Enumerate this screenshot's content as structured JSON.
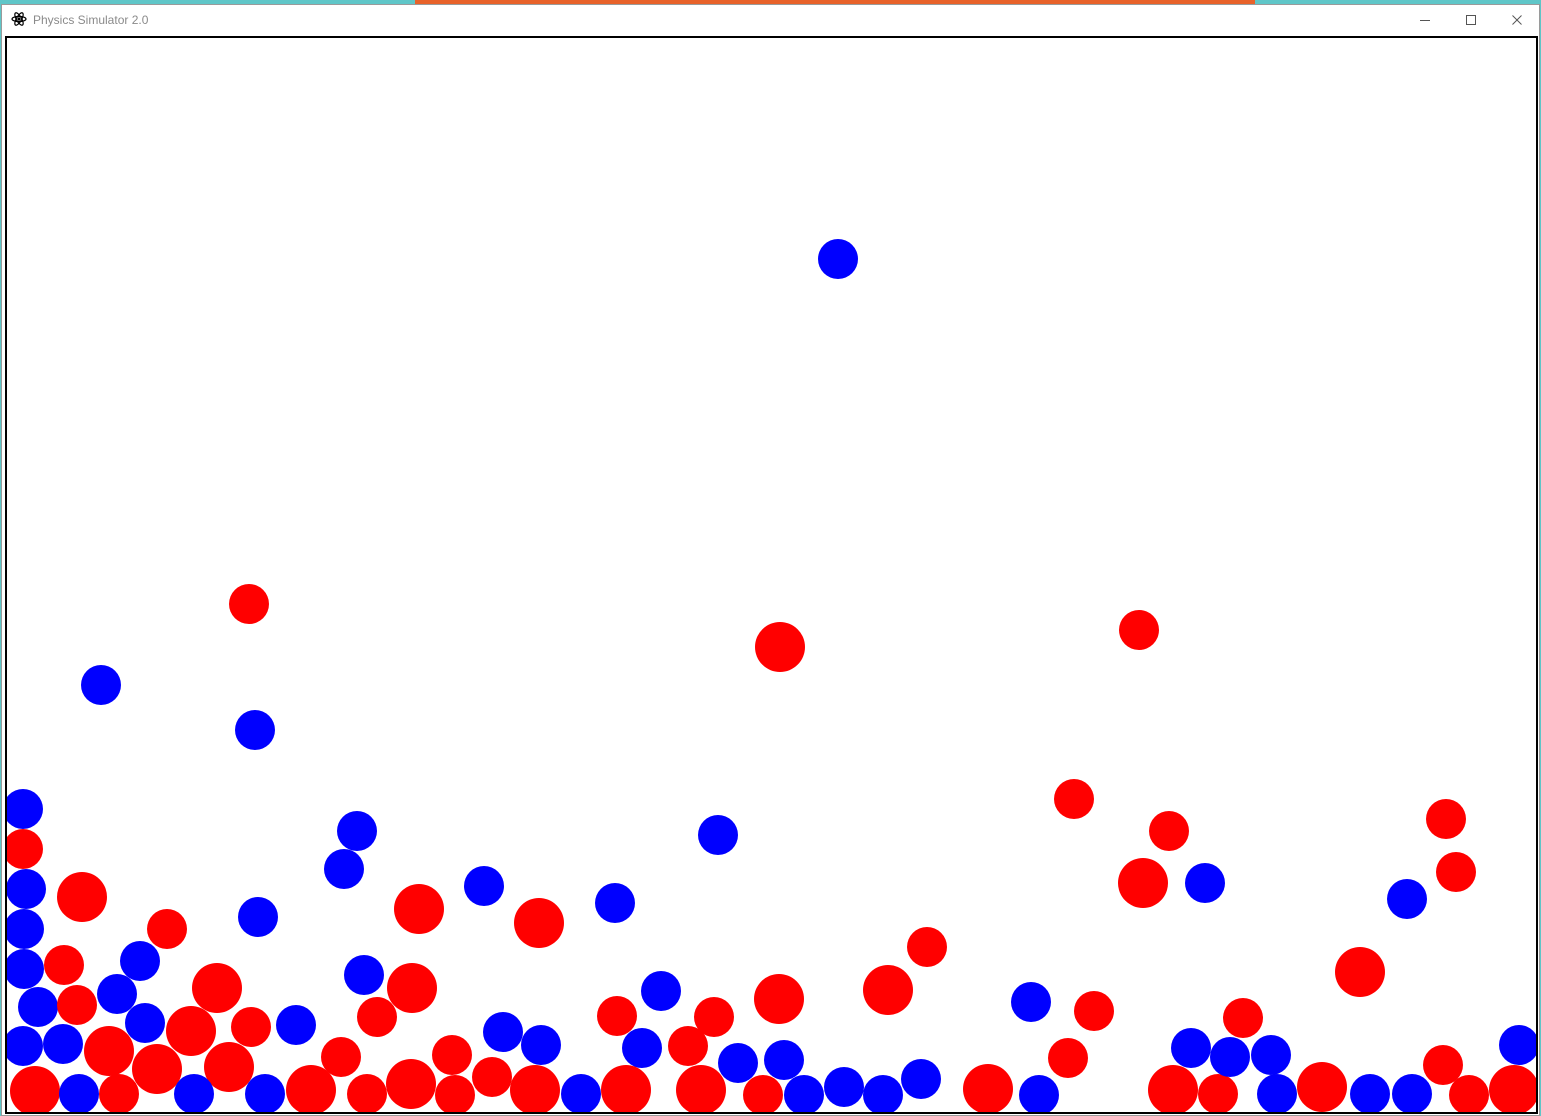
{
  "window": {
    "title": "Physics Simulator 2.0",
    "icon": "atom-icon",
    "controls": [
      "minimize-icon",
      "maximize-icon",
      "close-icon"
    ]
  },
  "colors": {
    "red_ball": "#ff0000",
    "blue_ball": "#0000ff",
    "canvas_border": "#000000",
    "canvas_background": "#ffffff"
  },
  "simulation": {
    "balls": [
      {
        "color": "blue"
      },
      {
        "color": "red"
      },
      {
        "color": "blue"
      },
      {
        "color": "red"
      },
      {
        "color": "blue"
      },
      {
        "color": "red"
      },
      {
        "color": "blue"
      },
      {
        "color": "red"
      },
      {
        "color": "blue"
      },
      {
        "color": "blue"
      },
      {
        "color": "blue"
      },
      {
        "color": "blue"
      },
      {
        "color": "red"
      },
      {
        "color": "red"
      },
      {
        "color": "blue"
      },
      {
        "color": "red"
      },
      {
        "color": "red"
      },
      {
        "color": "red"
      },
      {
        "color": "blue"
      },
      {
        "color": "blue"
      },
      {
        "color": "red"
      },
      {
        "color": "blue"
      },
      {
        "color": "red"
      },
      {
        "color": "blue"
      },
      {
        "color": "red"
      },
      {
        "color": "red"
      },
      {
        "color": "red"
      },
      {
        "color": "blue"
      },
      {
        "color": "red"
      },
      {
        "color": "red"
      },
      {
        "color": "blue"
      },
      {
        "color": "red"
      },
      {
        "color": "blue"
      },
      {
        "color": "red"
      },
      {
        "color": "red"
      },
      {
        "color": "red"
      },
      {
        "color": "red"
      },
      {
        "color": "blue"
      },
      {
        "color": "blue"
      },
      {
        "color": "blue"
      },
      {
        "color": "red"
      },
      {
        "color": "blue"
      },
      {
        "color": "red"
      },
      {
        "color": "blue"
      },
      {
        "color": "red"
      },
      {
        "color": "red"
      },
      {
        "color": "blue"
      },
      {
        "color": "red"
      },
      {
        "color": "blue"
      },
      {
        "color": "red"
      },
      {
        "color": "red"
      },
      {
        "color": "blue"
      },
      {
        "color": "red"
      },
      {
        "color": "blue"
      },
      {
        "color": "blue"
      },
      {
        "color": "blue"
      },
      {
        "color": "blue"
      },
      {
        "color": "red"
      },
      {
        "color": "red"
      },
      {
        "color": "red"
      },
      {
        "color": "blue"
      },
      {
        "color": "red"
      },
      {
        "color": "red"
      },
      {
        "color": "blue"
      },
      {
        "color": "blue"
      },
      {
        "color": "red"
      },
      {
        "color": "red"
      },
      {
        "color": "red"
      },
      {
        "color": "blue"
      },
      {
        "color": "blue"
      },
      {
        "color": "blue"
      },
      {
        "color": "red"
      },
      {
        "color": "blue"
      },
      {
        "color": "red"
      },
      {
        "color": "red"
      },
      {
        "color": "blue"
      },
      {
        "color": "red"
      },
      {
        "color": "blue"
      },
      {
        "color": "blue"
      },
      {
        "color": "red"
      },
      {
        "color": "red"
      },
      {
        "color": "red"
      },
      {
        "color": "red"
      },
      {
        "color": "blue"
      },
      {
        "color": "red"
      },
      {
        "color": "blue"
      },
      {
        "color": "red"
      },
      {
        "color": "red"
      },
      {
        "color": "blue"
      },
      {
        "color": "red"
      },
      {
        "color": "red"
      }
    ]
  }
}
